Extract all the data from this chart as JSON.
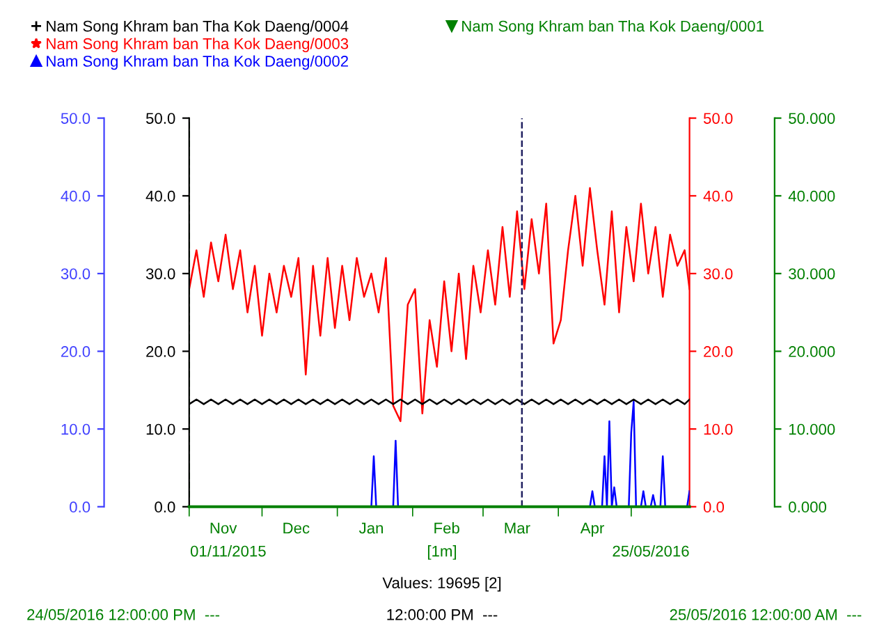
{
  "chart_data": {
    "type": "line",
    "x": [
      "2015-11-01",
      "2015-11-04",
      "2015-11-07",
      "2015-11-10",
      "2015-11-13",
      "2015-11-16",
      "2015-11-19",
      "2015-11-22",
      "2015-11-25",
      "2015-11-28",
      "2015-12-01",
      "2015-12-04",
      "2015-12-07",
      "2015-12-10",
      "2015-12-13",
      "2015-12-16",
      "2015-12-19",
      "2015-12-22",
      "2015-12-25",
      "2015-12-28",
      "2015-12-31",
      "2016-01-03",
      "2016-01-06",
      "2016-01-09",
      "2016-01-12",
      "2016-01-15",
      "2016-01-18",
      "2016-01-21",
      "2016-01-24",
      "2016-01-27",
      "2016-01-30",
      "2016-02-02",
      "2016-02-05",
      "2016-02-08",
      "2016-02-11",
      "2016-02-14",
      "2016-02-17",
      "2016-02-20",
      "2016-02-23",
      "2016-02-26",
      "2016-02-29",
      "2016-03-03",
      "2016-03-06",
      "2016-03-09",
      "2016-03-12",
      "2016-03-15",
      "2016-03-18",
      "2016-03-21",
      "2016-03-24",
      "2016-03-27",
      "2016-03-30",
      "2016-04-02",
      "2016-04-05",
      "2016-04-08",
      "2016-04-11",
      "2016-04-14",
      "2016-04-17",
      "2016-04-20",
      "2016-04-23",
      "2016-04-26",
      "2016-04-29",
      "2016-05-02",
      "2016-05-05",
      "2016-05-08",
      "2016-05-11",
      "2016-05-14",
      "2016-05-17",
      "2016-05-20",
      "2016-05-23",
      "2016-05-25"
    ],
    "series": [
      {
        "name": "Nam Song Khram ban Tha Kok Daeng/0004",
        "color": "#000000",
        "axis": "y",
        "values": [
          13.2,
          13.8,
          13.2,
          13.8,
          13.2,
          13.8,
          13.2,
          13.8,
          13.2,
          13.8,
          13.2,
          13.8,
          13.2,
          13.8,
          13.2,
          13.8,
          13.2,
          13.8,
          13.2,
          13.8,
          13.2,
          13.8,
          13.2,
          13.8,
          13.2,
          13.8,
          13.2,
          13.8,
          13.2,
          13.8,
          13.2,
          13.8,
          13.2,
          13.8,
          13.2,
          13.8,
          13.2,
          13.8,
          13.2,
          13.8,
          13.2,
          13.8,
          13.2,
          13.8,
          13.2,
          13.8,
          13.2,
          13.8,
          13.2,
          13.8,
          13.2,
          13.8,
          13.2,
          13.8,
          13.2,
          13.8,
          13.2,
          13.8,
          13.2,
          13.8,
          13.2,
          13.8,
          13.2,
          13.8,
          13.2,
          13.8,
          13.2,
          13.8,
          13.2,
          13.8
        ]
      },
      {
        "name": "Nam Song Khram ban Tha Kok Daeng/0003",
        "color": "#ff0000",
        "axis": "y2",
        "values": [
          28,
          33,
          27,
          34,
          29,
          35,
          28,
          33,
          25,
          31,
          22,
          30,
          25,
          31,
          27,
          32,
          17,
          31,
          22,
          32,
          23,
          31,
          24,
          32,
          27,
          30,
          25,
          32,
          13,
          11,
          26,
          28,
          12,
          24,
          18,
          29,
          20,
          30,
          19,
          31,
          25,
          33,
          26,
          36,
          27,
          38,
          28,
          37,
          30,
          39,
          21,
          24,
          33,
          40,
          31,
          41,
          33,
          26,
          38,
          25,
          36,
          29,
          39,
          30,
          36,
          27,
          35,
          31,
          33,
          28
        ]
      },
      {
        "name": "Nam Song Khram ban Tha Kok Daeng/0002",
        "color": "#0000ff",
        "axis": "y",
        "x": [
          "2015-11-01",
          "2016-01-15",
          "2016-01-16",
          "2016-01-17",
          "2016-01-24",
          "2016-01-25",
          "2016-01-26",
          "2016-04-14",
          "2016-04-15",
          "2016-04-16",
          "2016-04-19",
          "2016-04-20",
          "2016-04-21",
          "2016-04-22",
          "2016-04-23",
          "2016-04-24",
          "2016-04-25",
          "2016-04-30",
          "2016-05-01",
          "2016-05-02",
          "2016-05-03",
          "2016-05-05",
          "2016-05-06",
          "2016-05-07",
          "2016-05-09",
          "2016-05-10",
          "2016-05-11",
          "2016-05-13",
          "2016-05-14",
          "2016-05-15",
          "2016-05-24",
          "2016-05-25"
        ],
        "values": [
          0,
          0,
          6.5,
          0,
          0,
          8.5,
          0,
          0,
          2,
          0,
          0,
          6.5,
          0,
          11,
          0,
          2.5,
          0,
          0,
          9.5,
          13.5,
          0,
          0,
          2,
          0,
          0,
          1.5,
          0,
          0,
          6.5,
          0,
          0,
          2
        ]
      },
      {
        "name": "Nam Song Khram ban Tha Kok Daeng/0001",
        "color": "#008000",
        "axis": "y3",
        "x": [
          "2015-11-01",
          "2016-05-25"
        ],
        "values": [
          0,
          0
        ]
      }
    ],
    "xlim": [
      "2015-11-01",
      "2016-05-25"
    ],
    "xticks": [
      {
        "value": "2015-11-01",
        "label": null
      },
      {
        "value": "2015-12-01",
        "label": null
      },
      {
        "value": "2016-01-01",
        "label": null
      },
      {
        "value": "2016-02-01",
        "label": null
      },
      {
        "value": "2016-03-01",
        "label": null
      },
      {
        "value": "2016-04-01",
        "label": null
      },
      {
        "value": "2016-05-01",
        "label": null
      },
      {
        "value": "2015-11-15",
        "label": "Nov"
      },
      {
        "value": "2015-12-15",
        "label": "Dec"
      },
      {
        "value": "2016-01-15",
        "label": "Jan"
      },
      {
        "value": "2016-02-15",
        "label": "Feb"
      },
      {
        "value": "2016-03-15",
        "label": "Mar"
      },
      {
        "value": "2016-04-15",
        "label": "Apr"
      }
    ],
    "ylim": [
      0,
      50
    ],
    "yticks": [
      {
        "value": 0,
        "label": "0.0"
      },
      {
        "value": 10,
        "label": "10.0"
      },
      {
        "value": 20,
        "label": "20.0"
      },
      {
        "value": 30,
        "label": "30.0"
      },
      {
        "value": 40,
        "label": "40.0"
      },
      {
        "value": 50,
        "label": "50.0"
      }
    ],
    "y2lim": [
      0,
      50
    ],
    "y2ticks": [
      {
        "value": 0,
        "label": "0.0"
      },
      {
        "value": 10,
        "label": "10.0"
      },
      {
        "value": 20,
        "label": "20.0"
      },
      {
        "value": 30,
        "label": "30.0"
      },
      {
        "value": 40,
        "label": "40.0"
      },
      {
        "value": 50,
        "label": "50.0"
      }
    ],
    "y3lim": [
      0,
      50
    ],
    "y3ticks": [
      {
        "value": 0,
        "label": "0.000"
      },
      {
        "value": 10,
        "label": "10.000"
      },
      {
        "value": 20,
        "label": "20.000"
      },
      {
        "value": 30,
        "label": "30.000"
      },
      {
        "value": 40,
        "label": "40.000"
      },
      {
        "value": 50,
        "label": "50.000"
      }
    ],
    "ref_lines": [
      {
        "axis": "x",
        "value": "2015-11-01",
        "color": "#008000",
        "line_style": "dashed"
      },
      {
        "axis": "x",
        "value": "2016-03-17",
        "color": "#202060",
        "line_style": "dashed"
      }
    ],
    "annotations": [
      "01/11/2015",
      "[1m]",
      "25/05/2016",
      "Values: 19695 [2]",
      "24/05/2016 12:00:00 PM  ---",
      "12:00:00 PM  ---",
      "25/05/2016 12:00:00 AM  ---"
    ],
    "grid": false,
    "legend": "top left",
    "line_style": "solid"
  }
}
